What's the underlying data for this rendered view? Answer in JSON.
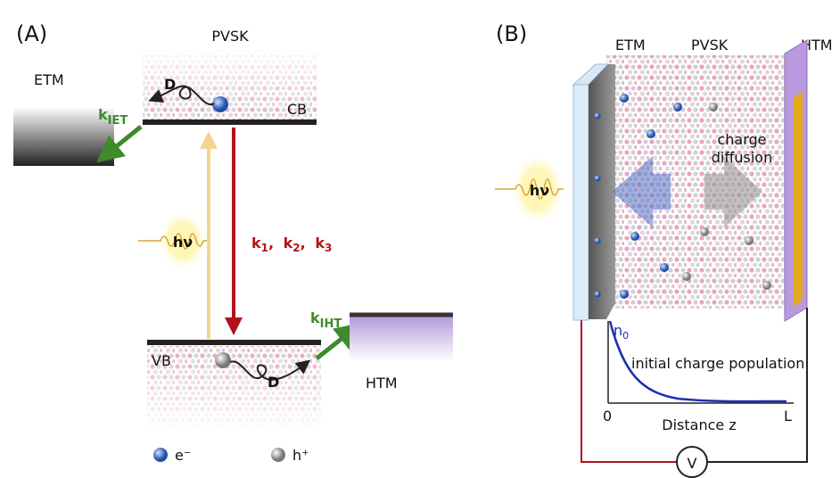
{
  "panel_a": {
    "label": "(A)",
    "pvsk": "PVSK",
    "etm": "ETM",
    "diffusion_top": "D",
    "k_iet": {
      "main": "k",
      "sub": "IET"
    },
    "cb": "CB",
    "photon": "hν",
    "recombination": {
      "rates": [
        {
          "main": "k",
          "sub": "1"
        },
        {
          "main": "k",
          "sub": "2"
        },
        {
          "main": "k",
          "sub": "3"
        }
      ],
      "separator": ","
    },
    "k_iht": {
      "main": "k",
      "sub": "IHT"
    },
    "vb": "VB",
    "diffusion_bottom": "D",
    "htm": "HTM",
    "legend": [
      "e⁻",
      "h⁺"
    ]
  },
  "panel_b": {
    "label": "(B)",
    "etm": "ETM",
    "pvsk": "PVSK",
    "htm": "HTM",
    "arrow_label": [
      "charge",
      "diffusion"
    ],
    "photon": "hν",
    "plot": {
      "n0": {
        "main": "n",
        "sub": "0"
      },
      "curve_label": "initial charge population",
      "x_start": "0",
      "x_label": "Distance z",
      "x_end": "L"
    },
    "meter": "V"
  }
}
